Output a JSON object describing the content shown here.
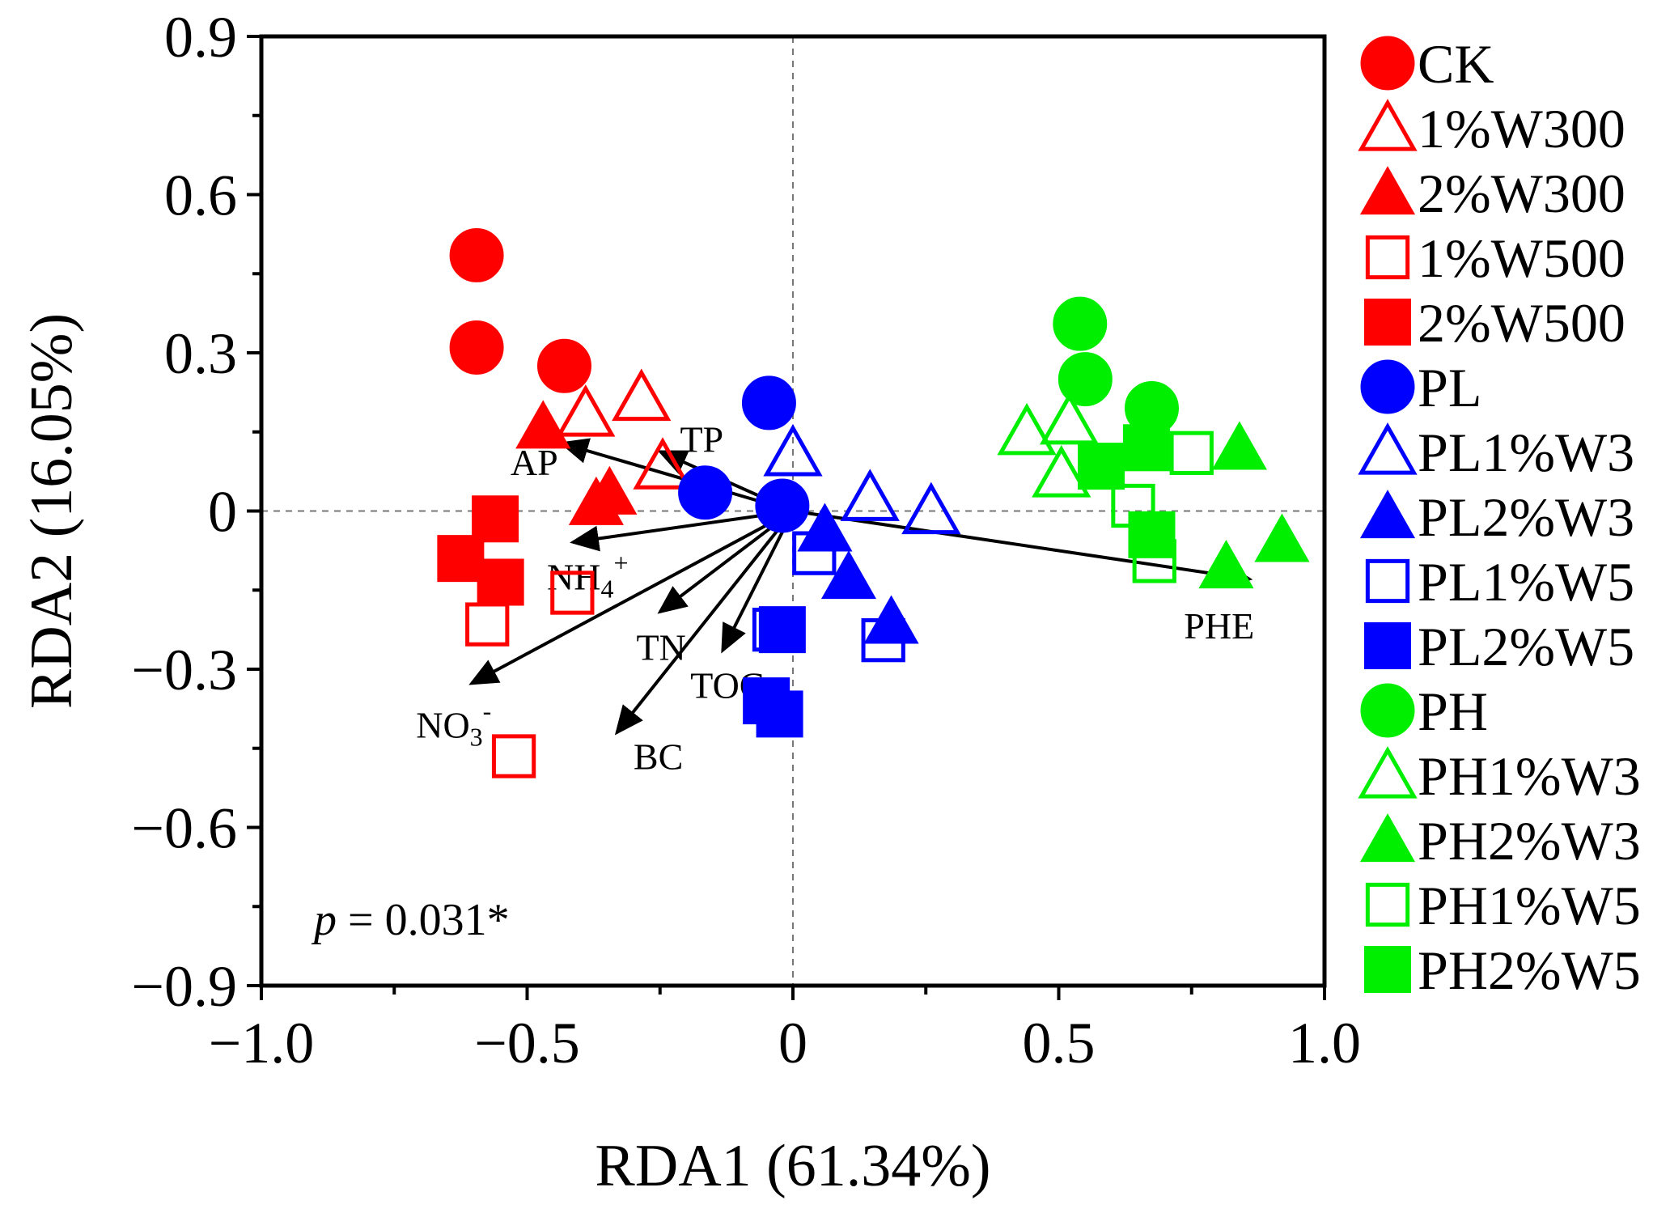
{
  "chart_data": {
    "type": "scatter",
    "title": "",
    "xlabel": "RDA1 (61.34%)",
    "ylabel": "RDA2 (16.05%)",
    "xlim": [
      -1.0,
      1.0
    ],
    "ylim": [
      -0.9,
      0.9
    ],
    "xticks": [
      -1.0,
      -0.5,
      0,
      0.5,
      1.0
    ],
    "xtick_labels": [
      "−1.0",
      "−0.5",
      "0",
      "0.5",
      "1.0"
    ],
    "yticks": [
      0.9,
      0.6,
      0.3,
      0,
      -0.3,
      -0.6,
      -0.9
    ],
    "ytick_labels": [
      "0.9",
      "0.6",
      "0.3",
      "0",
      "−0.3",
      "−0.6",
      "−0.9"
    ],
    "grid": false,
    "reference_lines": [
      0,
      0
    ],
    "legend_position": "right",
    "annotation": {
      "italic": "p",
      "rest": " = 0.031*"
    },
    "colors": {
      "red": "#ff0000",
      "blue": "#0000ff",
      "green": "#00ee00",
      "arrow": "#000000"
    },
    "series": [
      {
        "name": "CK",
        "color": "#ff0000",
        "marker": "circle",
        "filled": true,
        "points": [
          [
            -0.595,
            0.485
          ],
          [
            -0.595,
            0.31
          ],
          [
            -0.43,
            0.275
          ]
        ]
      },
      {
        "name": "1%W300",
        "color": "#ff0000",
        "marker": "triangle",
        "filled": false,
        "points": [
          [
            -0.39,
            0.185
          ],
          [
            -0.285,
            0.215
          ],
          [
            -0.245,
            0.085
          ]
        ]
      },
      {
        "name": "2%W300",
        "color": "#ff0000",
        "marker": "triangle",
        "filled": true,
        "points": [
          [
            -0.47,
            0.16
          ],
          [
            -0.37,
            0.015
          ],
          [
            -0.345,
            0.035
          ]
        ]
      },
      {
        "name": "1%W500",
        "color": "#ff0000",
        "marker": "square",
        "filled": false,
        "points": [
          [
            -0.575,
            -0.215
          ],
          [
            -0.415,
            -0.155
          ],
          [
            -0.525,
            -0.465
          ]
        ]
      },
      {
        "name": "2%W500",
        "color": "#ff0000",
        "marker": "square",
        "filled": true,
        "points": [
          [
            -0.625,
            -0.09
          ],
          [
            -0.56,
            -0.015
          ],
          [
            -0.55,
            -0.135
          ]
        ]
      },
      {
        "name": "PL",
        "color": "#0000ff",
        "marker": "circle",
        "filled": true,
        "points": [
          [
            -0.045,
            0.205
          ],
          [
            -0.165,
            0.035
          ],
          [
            -0.02,
            0.01
          ]
        ]
      },
      {
        "name": "PL1%W3",
        "color": "#0000ff",
        "marker": "triangle",
        "filled": false,
        "points": [
          [
            0.0,
            0.11
          ],
          [
            0.145,
            0.025
          ],
          [
            0.26,
            0.0
          ]
        ]
      },
      {
        "name": "PL2%W3",
        "color": "#0000ff",
        "marker": "triangle",
        "filled": true,
        "points": [
          [
            0.06,
            -0.035
          ],
          [
            0.105,
            -0.125
          ],
          [
            0.185,
            -0.21
          ]
        ]
      },
      {
        "name": "PL1%W5",
        "color": "#0000ff",
        "marker": "square",
        "filled": false,
        "points": [
          [
            0.04,
            -0.08
          ],
          [
            -0.035,
            -0.225
          ],
          [
            0.17,
            -0.245
          ]
        ]
      },
      {
        "name": "PL2%W5",
        "color": "#0000ff",
        "marker": "square",
        "filled": true,
        "points": [
          [
            -0.02,
            -0.225
          ],
          [
            -0.05,
            -0.36
          ],
          [
            -0.025,
            -0.385
          ]
        ]
      },
      {
        "name": "PH",
        "color": "#00ee00",
        "marker": "circle",
        "filled": true,
        "points": [
          [
            0.54,
            0.355
          ],
          [
            0.55,
            0.25
          ],
          [
            0.675,
            0.195
          ]
        ]
      },
      {
        "name": "PH1%W3",
        "color": "#00ee00",
        "marker": "triangle",
        "filled": false,
        "points": [
          [
            0.44,
            0.15
          ],
          [
            0.52,
            0.17
          ],
          [
            0.505,
            0.07
          ]
        ]
      },
      {
        "name": "PH2%W3",
        "color": "#00ee00",
        "marker": "triangle",
        "filled": true,
        "points": [
          [
            0.84,
            0.12
          ],
          [
            0.815,
            -0.105
          ],
          [
            0.92,
            -0.055
          ]
        ]
      },
      {
        "name": "PH1%W5",
        "color": "#00ee00",
        "marker": "square",
        "filled": false,
        "points": [
          [
            0.64,
            0.01
          ],
          [
            0.68,
            -0.095
          ],
          [
            0.75,
            0.11
          ]
        ]
      },
      {
        "name": "PH2%W5",
        "color": "#00ee00",
        "marker": "square",
        "filled": true,
        "points": [
          [
            0.58,
            0.085
          ],
          [
            0.665,
            0.12
          ],
          [
            0.675,
            -0.045
          ]
        ]
      }
    ],
    "env_vectors": [
      {
        "name": "AP",
        "base": "AP",
        "sup": "",
        "sub": "",
        "x": -0.44,
        "y": 0.13
      },
      {
        "name": "TP",
        "base": "TP",
        "sup": "",
        "sub": "",
        "x": -0.255,
        "y": 0.115
      },
      {
        "name": "NH4+",
        "base": "NH",
        "sub": "4",
        "sup": "+",
        "x": -0.42,
        "y": -0.06
      },
      {
        "name": "TN",
        "base": "TN",
        "sup": "",
        "sub": "",
        "x": -0.255,
        "y": -0.195
      },
      {
        "name": "TOC",
        "base": "TOC",
        "sup": "",
        "sub": "",
        "x": -0.135,
        "y": -0.27
      },
      {
        "name": "BC",
        "base": "BC",
        "sup": "",
        "sub": "",
        "x": -0.335,
        "y": -0.425
      },
      {
        "name": "NO3-",
        "base": "NO",
        "sub": "3",
        "sup": "-",
        "x": -0.61,
        "y": -0.33
      },
      {
        "name": "PHE",
        "base": "PHE",
        "sup": "",
        "sub": "",
        "x": 0.865,
        "y": -0.13
      }
    ]
  }
}
